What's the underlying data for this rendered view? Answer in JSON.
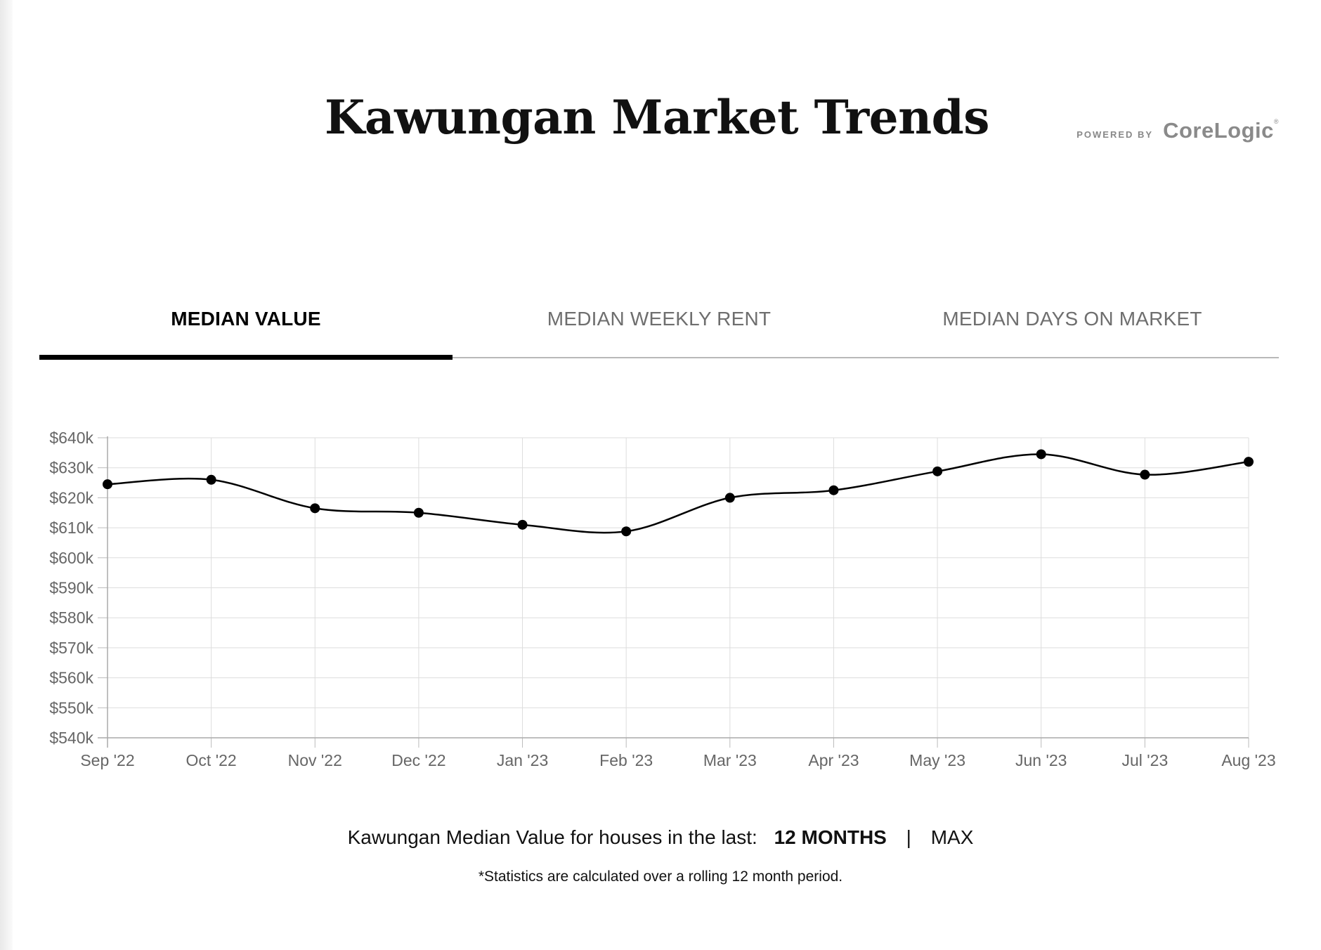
{
  "header": {
    "title": "Kawungan Market Trends",
    "brand_powered": "POWERED BY",
    "brand_name": "CoreLogic",
    "brand_mark": "®"
  },
  "tabs": [
    {
      "label": "MEDIAN VALUE",
      "active": true
    },
    {
      "label": "MEDIAN WEEKLY RENT",
      "active": false
    },
    {
      "label": "MEDIAN DAYS ON MARKET",
      "active": false
    }
  ],
  "chart_data": {
    "type": "line",
    "categories": [
      "Sep '22",
      "Oct '22",
      "Nov '22",
      "Dec '22",
      "Jan '23",
      "Feb '23",
      "Mar '23",
      "Apr '23",
      "May '23",
      "Jun '23",
      "Jul '23",
      "Aug '23"
    ],
    "series": [
      {
        "values": [
          624500,
          626000,
          616500,
          615000,
          611000,
          608800,
          620000,
          622500,
          628800,
          634500,
          627700,
          632000
        ]
      }
    ],
    "ylim": [
      540000,
      640000
    ],
    "yticks": [
      540000,
      550000,
      560000,
      570000,
      580000,
      590000,
      600000,
      610000,
      620000,
      630000,
      640000
    ],
    "ytick_labels": [
      "$540k",
      "$550k",
      "$560k",
      "$570k",
      "$580k",
      "$590k",
      "$600k",
      "$610k",
      "$620k",
      "$630k",
      "$640k"
    ],
    "grid": true,
    "line_color": "#000000",
    "grid_color": "#dddddd"
  },
  "footer": {
    "prefix": "Kawungan Median Value for houses in the last:",
    "period_active": "12 MONTHS",
    "separator": "|",
    "period_other": "MAX",
    "note": "*Statistics are calculated over a rolling 12 month period."
  }
}
